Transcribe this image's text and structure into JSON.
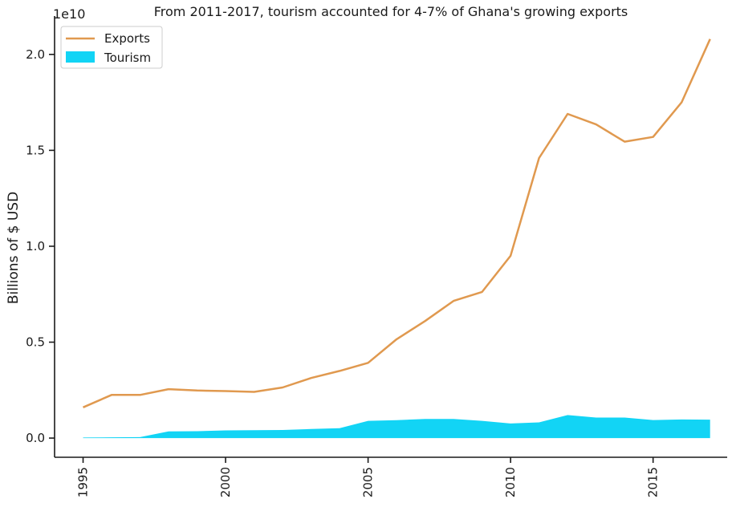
{
  "chart_data": {
    "type": "line",
    "title": "From 2011-2017, tourism accounted for 4-7% of Ghana's growing exports",
    "xlabel": "",
    "ylabel": "Billions of $ USD",
    "offset_text": "1e10",
    "x": [
      1995,
      1996,
      1997,
      1998,
      1999,
      2000,
      2001,
      2002,
      2003,
      2004,
      2005,
      2006,
      2007,
      2008,
      2009,
      2010,
      2011,
      2012,
      2013,
      2014,
      2015,
      2016,
      2017
    ],
    "xlim": [
      1994.0,
      2017.6
    ],
    "ylim": [
      -0.1,
      2.2
    ],
    "y_scale_note": "values in units of 1e10 USD",
    "xticks": [
      1995,
      2000,
      2005,
      2010,
      2015
    ],
    "xtick_labels": [
      "1995",
      "2000",
      "2005",
      "2010",
      "2015"
    ],
    "yticks": [
      0.0,
      0.5,
      1.0,
      1.5,
      2.0
    ],
    "ytick_labels": [
      "0.0",
      "0.5",
      "1.0",
      "1.5",
      "2.0"
    ],
    "grid": false,
    "legend_position": "top-left",
    "series": [
      {
        "name": "Exports",
        "kind": "line",
        "color": "#e0994f",
        "values": [
          0.16,
          0.225,
          0.225,
          0.255,
          0.248,
          0.245,
          0.241,
          0.264,
          0.313,
          0.35,
          0.392,
          0.515,
          0.61,
          0.715,
          0.762,
          0.95,
          1.46,
          1.69,
          1.635,
          1.545,
          1.57,
          1.75,
          2.08
        ]
      },
      {
        "name": "Tourism",
        "kind": "area",
        "color": "#12d4f5",
        "values": [
          0.003,
          0.004,
          0.005,
          0.035,
          0.036,
          0.04,
          0.041,
          0.042,
          0.047,
          0.052,
          0.09,
          0.093,
          0.1,
          0.1,
          0.09,
          0.076,
          0.082,
          0.12,
          0.107,
          0.107,
          0.094,
          0.097,
          0.096
        ]
      }
    ]
  }
}
